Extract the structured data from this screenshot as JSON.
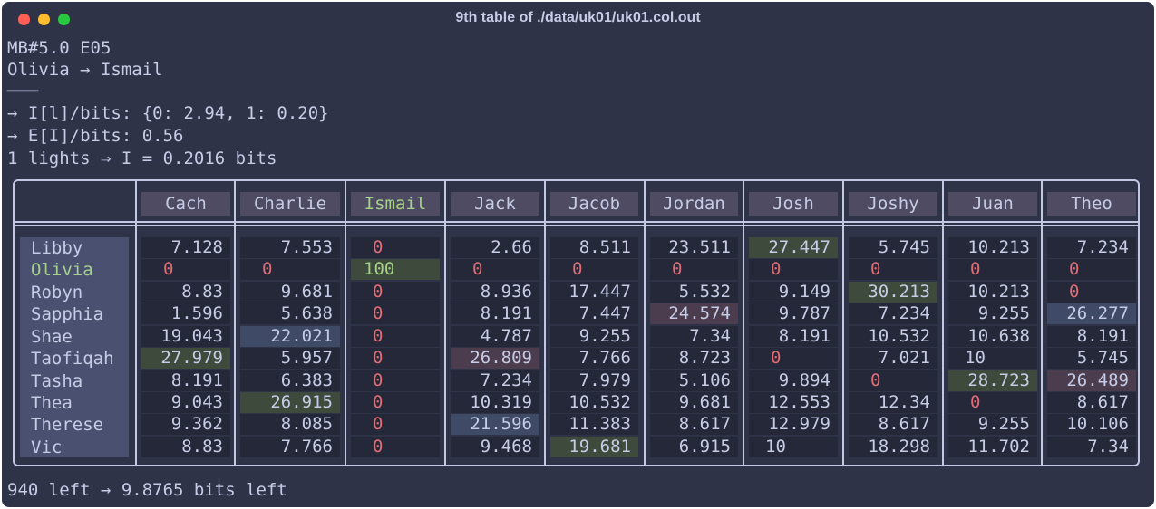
{
  "window": {
    "title": "9th table of ./data/uk01/uk01.col.out"
  },
  "header_lines": [
    "MB#5.0 E05",
    "Olivia → Ismail",
    "───",
    "→ I[l]/bits: {0: 2.94, 1: 0.20}",
    "→ E[I]/bits: 0.56",
    "1 lights ⇒ I = 0.2016 bits"
  ],
  "table": {
    "columns": [
      "Cach",
      "Charlie",
      "Ismail",
      "Jack",
      "Jacob",
      "Jordan",
      "Josh",
      "Joshy",
      "Juan",
      "Theo"
    ],
    "highlight_column": "Ismail",
    "rows": [
      {
        "name": "Libby",
        "values": [
          "7.128",
          "7.553",
          "0",
          "2.66",
          "8.511",
          "23.511",
          "27.447",
          "5.745",
          "10.213",
          "7.234"
        ],
        "hl": [
          null,
          null,
          null,
          null,
          null,
          null,
          "green",
          null,
          null,
          null
        ]
      },
      {
        "name": "Olivia",
        "values": [
          "0",
          "0",
          "100",
          "0",
          "0",
          "0",
          "0",
          "0",
          "0",
          "0"
        ],
        "hl": [
          null,
          null,
          "green",
          null,
          null,
          null,
          null,
          null,
          null,
          null
        ]
      },
      {
        "name": "Robyn",
        "values": [
          "8.83",
          "9.681",
          "0",
          "8.936",
          "17.447",
          "5.532",
          "9.149",
          "30.213",
          "10.213",
          "0"
        ],
        "hl": [
          null,
          null,
          null,
          null,
          null,
          null,
          null,
          "green",
          null,
          null
        ]
      },
      {
        "name": "Sapphia",
        "values": [
          "1.596",
          "5.638",
          "0",
          "8.191",
          "7.447",
          "24.574",
          "9.787",
          "7.234",
          "9.255",
          "26.277"
        ],
        "hl": [
          null,
          null,
          null,
          null,
          null,
          "pink",
          null,
          null,
          null,
          "blue"
        ]
      },
      {
        "name": "Shae",
        "values": [
          "19.043",
          "22.021",
          "0",
          "4.787",
          "9.255",
          "7.34",
          "8.191",
          "10.532",
          "10.638",
          "8.191"
        ],
        "hl": [
          null,
          "blue",
          null,
          null,
          null,
          null,
          null,
          null,
          null,
          null
        ]
      },
      {
        "name": "Taofiqah",
        "values": [
          "27.979",
          "5.957",
          "0",
          "26.809",
          "7.766",
          "8.723",
          "0",
          "7.021",
          "10",
          "5.745"
        ],
        "hl": [
          "green",
          null,
          null,
          "pink",
          null,
          null,
          null,
          null,
          null,
          null
        ]
      },
      {
        "name": "Tasha",
        "values": [
          "8.191",
          "6.383",
          "0",
          "7.234",
          "7.979",
          "5.106",
          "9.894",
          "0",
          "28.723",
          "26.489"
        ],
        "hl": [
          null,
          null,
          null,
          null,
          null,
          null,
          null,
          null,
          "green",
          "pink"
        ]
      },
      {
        "name": "Thea",
        "values": [
          "9.043",
          "26.915",
          "0",
          "10.319",
          "10.532",
          "9.681",
          "12.553",
          "12.34",
          "0",
          "8.617"
        ],
        "hl": [
          null,
          "green",
          null,
          null,
          null,
          null,
          null,
          null,
          null,
          null
        ]
      },
      {
        "name": "Therese",
        "values": [
          "9.362",
          "8.085",
          "0",
          "21.596",
          "11.383",
          "8.617",
          "12.979",
          "8.617",
          "9.255",
          "10.106"
        ],
        "hl": [
          null,
          null,
          null,
          "blue",
          null,
          null,
          null,
          null,
          null,
          null
        ]
      },
      {
        "name": "Vic",
        "values": [
          "8.83",
          "7.766",
          "0",
          "9.468",
          "19.681",
          "6.915",
          "10",
          "18.298",
          "11.702",
          "7.34"
        ],
        "hl": [
          null,
          null,
          null,
          null,
          "green",
          null,
          null,
          null,
          null,
          null
        ]
      }
    ]
  },
  "footer": "940 left → 9.8765 bits left",
  "colors": {
    "background": "#2f3348",
    "text": "#c6cce6",
    "zero": "#e06c75",
    "highlight_name": "#a6d189",
    "green_highlight": "#3d4a3c",
    "blue_highlight": "#3f4a66",
    "pink_highlight": "#4b3d4d"
  }
}
